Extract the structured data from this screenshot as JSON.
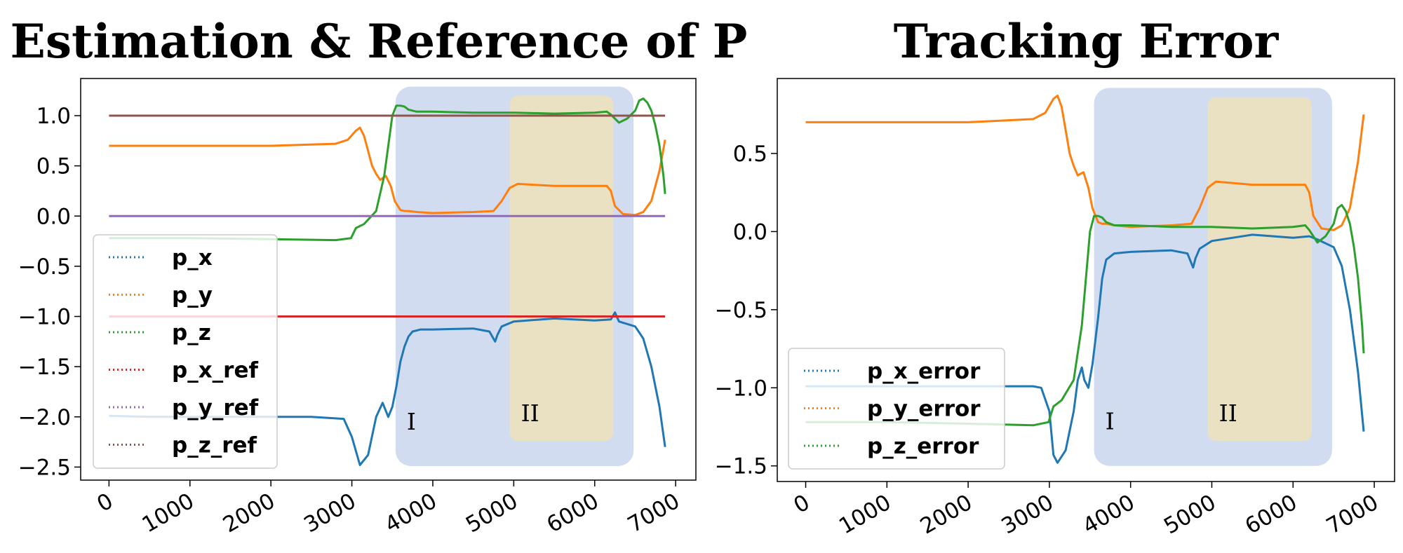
{
  "colors": {
    "blue": "#1f77b4",
    "orange": "#ff7f0e",
    "green": "#2ca02c",
    "red": "#d62728",
    "purple": "#9467bd",
    "brown": "#8c564b",
    "region_I": "#bccbe9",
    "region_II": "#f0e2b6"
  },
  "chart_data": [
    {
      "type": "line",
      "title": "Estimation & Reference of P",
      "xlabel": "",
      "ylabel": "",
      "xlim": [
        -350,
        7250
      ],
      "ylim": [
        -2.63,
        1.37
      ],
      "xticks": [
        "0",
        "1000",
        "2000",
        "3000",
        "4000",
        "5000",
        "6000",
        "7000"
      ],
      "yticks": [
        "1.0",
        "0.5",
        "0.0",
        "−0.5",
        "−1.0",
        "−1.5",
        "−2.0",
        "−2.5"
      ],
      "grid": false,
      "legend_position": "lower-left",
      "regions": [
        {
          "label": "I",
          "x": [
            3540,
            6480
          ],
          "y": [
            -2.49,
            1.29
          ]
        },
        {
          "label": "II",
          "x": [
            4950,
            6230
          ],
          "y": [
            -2.24,
            1.2
          ]
        }
      ],
      "series": [
        {
          "name": "p_x",
          "color": "#1f77b4",
          "x": [
            0,
            500,
            1500,
            2500,
            2900,
            3000,
            3100,
            3200,
            3300,
            3380,
            3450,
            3500,
            3550,
            3600,
            3650,
            3700,
            3750,
            3850,
            4000,
            4500,
            4700,
            4770,
            4800,
            4850,
            5000,
            5500,
            6000,
            6200,
            6250,
            6300,
            6500,
            6600,
            6700,
            6800,
            6870
          ],
          "y": [
            -1.99,
            -2.0,
            -2.0,
            -2.0,
            -2.02,
            -2.2,
            -2.48,
            -2.38,
            -2.0,
            -1.86,
            -2.0,
            -1.9,
            -1.7,
            -1.45,
            -1.3,
            -1.2,
            -1.15,
            -1.13,
            -1.13,
            -1.12,
            -1.15,
            -1.25,
            -1.18,
            -1.1,
            -1.05,
            -1.02,
            -1.04,
            -1.03,
            -0.96,
            -1.05,
            -1.1,
            -1.22,
            -1.5,
            -1.9,
            -2.3
          ]
        },
        {
          "name": "p_y",
          "color": "#ff7f0e",
          "x": [
            0,
            1000,
            2000,
            2800,
            2950,
            3050,
            3100,
            3150,
            3200,
            3250,
            3300,
            3350,
            3420,
            3480,
            3530,
            3600,
            3650,
            3700,
            3800,
            4000,
            4500,
            4750,
            4850,
            4950,
            5050,
            5500,
            6000,
            6150,
            6200,
            6250,
            6350,
            6500,
            6600,
            6700,
            6800,
            6870
          ],
          "y": [
            0.7,
            0.7,
            0.7,
            0.72,
            0.76,
            0.85,
            0.88,
            0.8,
            0.65,
            0.5,
            0.42,
            0.36,
            0.4,
            0.3,
            0.15,
            0.06,
            0.05,
            0.05,
            0.04,
            0.03,
            0.04,
            0.05,
            0.15,
            0.28,
            0.32,
            0.3,
            0.3,
            0.3,
            0.25,
            0.1,
            0.02,
            0.01,
            0.04,
            0.15,
            0.45,
            0.76
          ]
        },
        {
          "name": "p_z",
          "color": "#2ca02c",
          "x": [
            0,
            1000,
            2000,
            2800,
            2990,
            3050,
            3150,
            3300,
            3400,
            3450,
            3500,
            3550,
            3600,
            3650,
            3700,
            3800,
            4000,
            4500,
            5000,
            5500,
            6000,
            6150,
            6200,
            6300,
            6400,
            6500,
            6550,
            6600,
            6650,
            6700,
            6750,
            6800,
            6850,
            6870
          ],
          "y": [
            -0.22,
            -0.22,
            -0.23,
            -0.24,
            -0.22,
            -0.12,
            -0.08,
            0.05,
            0.4,
            0.7,
            1.0,
            1.1,
            1.1,
            1.09,
            1.06,
            1.04,
            1.04,
            1.03,
            1.03,
            1.02,
            1.03,
            1.04,
            1.01,
            0.93,
            0.97,
            1.05,
            1.15,
            1.17,
            1.13,
            1.05,
            0.9,
            0.7,
            0.4,
            0.22
          ]
        },
        {
          "name": "p_x_ref",
          "color": "#d62728",
          "x": [
            0,
            6870
          ],
          "y": [
            -1.0,
            -1.0
          ]
        },
        {
          "name": "p_y_ref",
          "color": "#9467bd",
          "x": [
            0,
            6870
          ],
          "y": [
            0.0,
            0.0
          ]
        },
        {
          "name": "p_z_ref",
          "color": "#8c564b",
          "x": [
            0,
            6870
          ],
          "y": [
            1.0,
            1.0
          ]
        }
      ]
    },
    {
      "type": "line",
      "title": "Tracking Error",
      "xlabel": "",
      "ylabel": "",
      "xlim": [
        -350,
        7250
      ],
      "ylim": [
        -1.6,
        0.98
      ],
      "xticks": [
        "0",
        "1000",
        "2000",
        "3000",
        "4000",
        "5000",
        "6000",
        "7000"
      ],
      "yticks": [
        "0.5",
        "0.0",
        "−0.5",
        "−1.0",
        "−1.5"
      ],
      "grid": false,
      "legend_position": "lower-left",
      "regions": [
        {
          "label": "I",
          "x": [
            3550,
            6480
          ],
          "y": [
            -1.5,
            0.92
          ]
        },
        {
          "label": "II",
          "x": [
            4950,
            6230
          ],
          "y": [
            -1.34,
            0.86
          ]
        }
      ],
      "series": [
        {
          "name": "p_x_error",
          "color": "#1f77b4",
          "x": [
            0,
            1000,
            2000,
            2800,
            2900,
            3000,
            3050,
            3100,
            3200,
            3300,
            3350,
            3400,
            3430,
            3480,
            3530,
            3600,
            3650,
            3700,
            3800,
            4000,
            4500,
            4700,
            4770,
            4800,
            4850,
            5000,
            5500,
            6000,
            6200,
            6300,
            6500,
            6600,
            6700,
            6800,
            6870
          ],
          "y": [
            -0.99,
            -0.99,
            -0.99,
            -0.99,
            -1.0,
            -1.15,
            -1.43,
            -1.48,
            -1.4,
            -1.15,
            -0.95,
            -0.87,
            -0.95,
            -1.0,
            -0.85,
            -0.55,
            -0.3,
            -0.18,
            -0.14,
            -0.13,
            -0.12,
            -0.14,
            -0.23,
            -0.17,
            -0.11,
            -0.06,
            -0.02,
            -0.04,
            -0.03,
            -0.05,
            -0.1,
            -0.22,
            -0.5,
            -0.9,
            -1.28
          ]
        },
        {
          "name": "p_y_error",
          "color": "#ff7f0e",
          "x": [
            0,
            1000,
            2000,
            2800,
            2950,
            3050,
            3100,
            3150,
            3200,
            3250,
            3300,
            3350,
            3420,
            3480,
            3530,
            3600,
            3650,
            3700,
            3800,
            4000,
            4500,
            4750,
            4850,
            4950,
            5050,
            5500,
            6000,
            6150,
            6200,
            6250,
            6350,
            6500,
            6600,
            6700,
            6800,
            6870
          ],
          "y": [
            0.7,
            0.7,
            0.7,
            0.72,
            0.76,
            0.85,
            0.87,
            0.8,
            0.65,
            0.5,
            0.42,
            0.36,
            0.38,
            0.28,
            0.15,
            0.06,
            0.05,
            0.05,
            0.04,
            0.03,
            0.04,
            0.05,
            0.15,
            0.28,
            0.32,
            0.3,
            0.3,
            0.3,
            0.25,
            0.1,
            0.02,
            0.01,
            0.04,
            0.15,
            0.45,
            0.75
          ]
        },
        {
          "name": "p_z_error",
          "color": "#2ca02c",
          "x": [
            0,
            1000,
            2000,
            2800,
            2990,
            3050,
            3150,
            3300,
            3400,
            3450,
            3500,
            3550,
            3600,
            3650,
            3700,
            3800,
            4000,
            4500,
            5000,
            5500,
            6000,
            6150,
            6200,
            6300,
            6400,
            6500,
            6550,
            6600,
            6650,
            6700,
            6750,
            6800,
            6850,
            6870
          ],
          "y": [
            -1.22,
            -1.22,
            -1.23,
            -1.24,
            -1.22,
            -1.12,
            -1.08,
            -0.95,
            -0.6,
            -0.3,
            0.0,
            0.1,
            0.1,
            0.09,
            0.06,
            0.04,
            0.04,
            0.03,
            0.03,
            0.02,
            0.03,
            0.04,
            0.01,
            -0.07,
            -0.03,
            0.05,
            0.15,
            0.17,
            0.13,
            0.05,
            -0.1,
            -0.3,
            -0.6,
            -0.78
          ]
        }
      ]
    }
  ]
}
